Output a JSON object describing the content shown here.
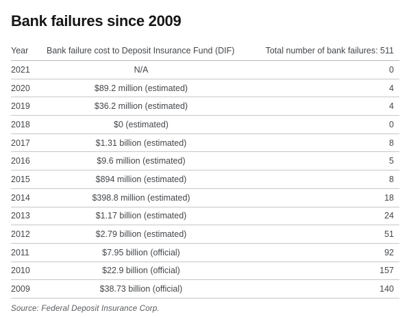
{
  "title": "Bank failures since 2009",
  "source_note": "Source: Federal Deposit Insurance Corp.",
  "colors": {
    "background": "#ffffff",
    "title_text": "#161616",
    "body_text": "#43464a",
    "divider": "#c6c6c6",
    "header_divider": "#b9b9b9",
    "source_text": "#55585c"
  },
  "chart_data": {
    "type": "table",
    "title": "Bank failures since 2009",
    "columns": [
      "Year",
      "Bank failure cost to Deposit Insurance Fund (DIF)",
      "Total number of bank failures: 511"
    ],
    "total_bank_failures": 511,
    "rows": [
      {
        "year": "2021",
        "cost": "N/A",
        "failures": "0"
      },
      {
        "year": "2020",
        "cost": "$89.2 million (estimated)",
        "failures": "4"
      },
      {
        "year": "2019",
        "cost": "$36.2 million (estimated)",
        "failures": "4"
      },
      {
        "year": "2018",
        "cost": "$0 (estimated)",
        "failures": "0"
      },
      {
        "year": "2017",
        "cost": "$1.31 billion (estimated)",
        "failures": "8"
      },
      {
        "year": "2016",
        "cost": "$9.6 million (estimated)",
        "failures": "5"
      },
      {
        "year": "2015",
        "cost": "$894 million (estimated)",
        "failures": "8"
      },
      {
        "year": "2014",
        "cost": "$398.8 million (estimated)",
        "failures": "18"
      },
      {
        "year": "2013",
        "cost": "$1.17 billion (estimated)",
        "failures": "24"
      },
      {
        "year": "2012",
        "cost": "$2.79 billion (estimated)",
        "failures": "51"
      },
      {
        "year": "2011",
        "cost": "$7.95 billion (official)",
        "failures": "92"
      },
      {
        "year": "2010",
        "cost": "$22.9 billion (official)",
        "failures": "157"
      },
      {
        "year": "2009",
        "cost": "$38.73 billion (official)",
        "failures": "140"
      }
    ]
  }
}
